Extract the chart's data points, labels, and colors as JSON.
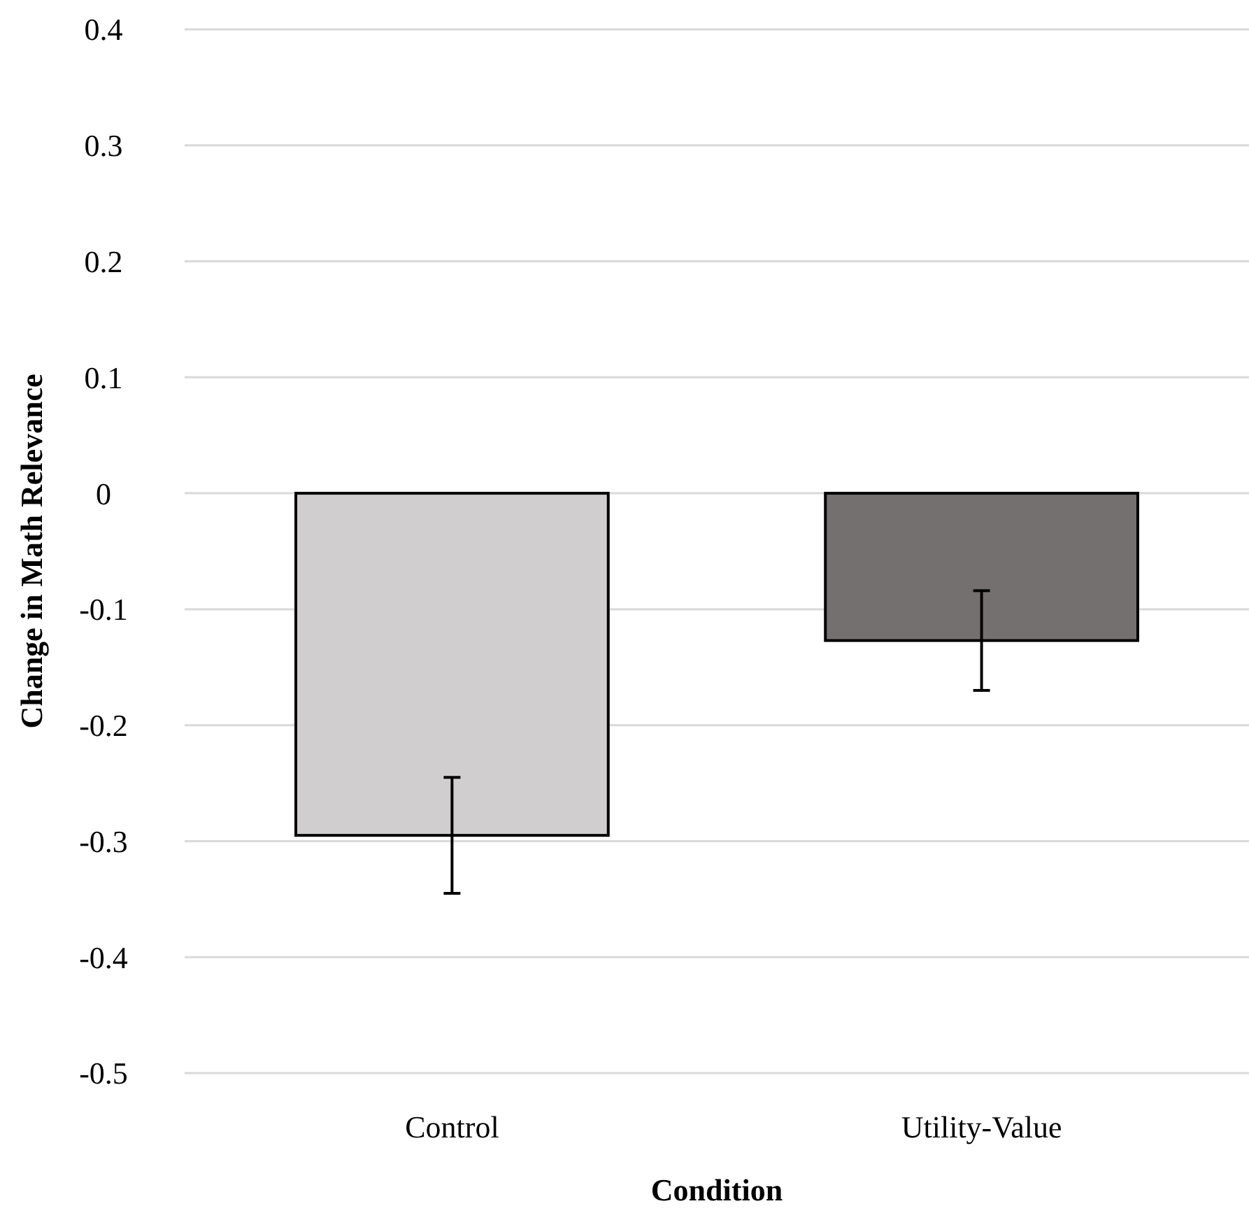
{
  "chart_data": {
    "type": "bar",
    "xlabel": "Condition",
    "ylabel": "Change in Math Relevance",
    "categories": [
      "Control",
      "Utility-Value"
    ],
    "values": [
      -0.295,
      -0.127
    ],
    "errors": [
      0.05,
      0.043
    ],
    "colors": [
      "#d0cecf",
      "#747070"
    ],
    "ylim": [
      -0.5,
      0.4
    ],
    "yticks": [
      -0.5,
      -0.4,
      -0.3,
      -0.2,
      -0.1,
      0,
      0.1,
      0.2,
      0.3,
      0.4
    ],
    "grid": "y"
  }
}
